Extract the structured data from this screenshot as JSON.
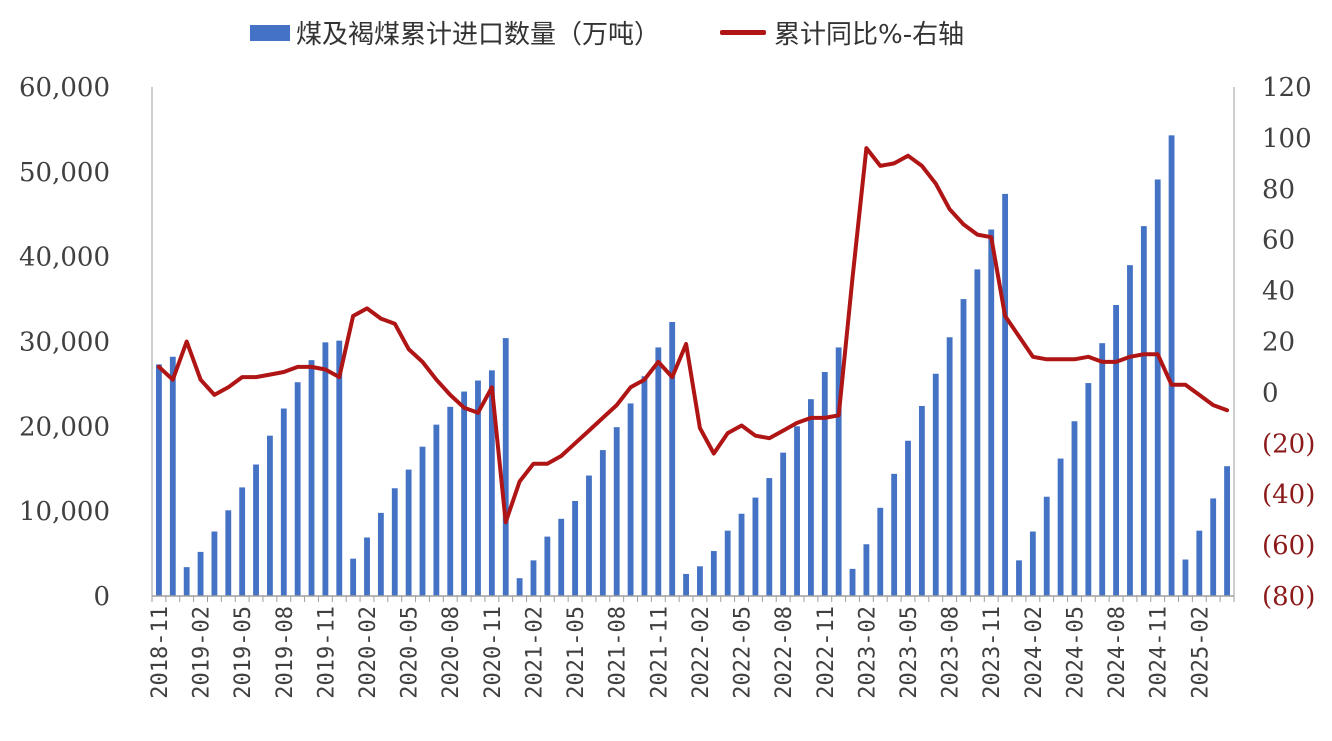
{
  "legend": {
    "bar_label": "煤及褐煤累计进口数量（万吨）",
    "line_label": "累计同比%-右轴"
  },
  "colors": {
    "bar": "#4472C4",
    "line": "#B01515",
    "axis": "#9e9e9e",
    "neg_tick": "#8B1A1A"
  },
  "chart_data": {
    "type": "bar+line",
    "categories": [
      "2018-11",
      "2018-12",
      "2019-01",
      "2019-02",
      "2019-03",
      "2019-04",
      "2019-05",
      "2019-06",
      "2019-07",
      "2019-08",
      "2019-09",
      "2019-10",
      "2019-11",
      "2019-12",
      "2020-01",
      "2020-02",
      "2020-03",
      "2020-04",
      "2020-05",
      "2020-06",
      "2020-07",
      "2020-08",
      "2020-09",
      "2020-10",
      "2020-11",
      "2020-12",
      "2021-01",
      "2021-02",
      "2021-03",
      "2021-04",
      "2021-05",
      "2021-06",
      "2021-07",
      "2021-08",
      "2021-09",
      "2021-10",
      "2021-11",
      "2021-12",
      "2022-01",
      "2022-02",
      "2022-03",
      "2022-04",
      "2022-05",
      "2022-06",
      "2022-07",
      "2022-08",
      "2022-09",
      "2022-10",
      "2022-11",
      "2022-12",
      "2023-01",
      "2023-02",
      "2023-03",
      "2023-04",
      "2023-05",
      "2023-06",
      "2023-07",
      "2023-08",
      "2023-09",
      "2023-10",
      "2023-11",
      "2023-12",
      "2024-01",
      "2024-02",
      "2024-03",
      "2024-04",
      "2024-05",
      "2024-06",
      "2024-07",
      "2024-08",
      "2024-09",
      "2024-10",
      "2024-11",
      "2024-12",
      "2025-01",
      "2025-02",
      "2025-03",
      "2025-04"
    ],
    "x_tick_labels": [
      "2018-11",
      "2019-02",
      "2019-05",
      "2019-08",
      "2019-11",
      "2020-02",
      "2020-05",
      "2020-08",
      "2020-11",
      "2021-02",
      "2021-05",
      "2021-08",
      "2021-11",
      "2022-02",
      "2022-05",
      "2022-08",
      "2022-11",
      "2023-02",
      "2023-05",
      "2023-08",
      "2023-11",
      "2024-02",
      "2024-05",
      "2024-08",
      "2024-11",
      "2025-02"
    ],
    "series": [
      {
        "name": "煤及褐煤累计进口数量（万吨）",
        "type": "bar",
        "axis": "left",
        "values": [
          27300,
          28200,
          3400,
          5200,
          7600,
          10100,
          12800,
          15500,
          18900,
          22100,
          25200,
          27800,
          29900,
          30100,
          4400,
          6900,
          9800,
          12700,
          14900,
          17600,
          20200,
          22300,
          24100,
          25400,
          26600,
          30400,
          2100,
          4200,
          7000,
          9100,
          11200,
          14200,
          17200,
          19900,
          22700,
          25900,
          29300,
          32300,
          2600,
          3500,
          5300,
          7700,
          9700,
          11600,
          13900,
          16900,
          20000,
          23200,
          26400,
          29300,
          3200,
          6100,
          10400,
          14400,
          18300,
          22400,
          26200,
          30500,
          35000,
          38500,
          43200,
          47400,
          4200,
          7600,
          11700,
          16200,
          20600,
          25100,
          29800,
          34300,
          39000,
          43600,
          49100,
          54300,
          4300,
          7700,
          11500,
          15300
        ]
      },
      {
        "name": "累计同比%-右轴",
        "type": "line",
        "axis": "right",
        "values": [
          10,
          5,
          20,
          5,
          -1,
          2,
          6,
          6,
          7,
          8,
          10,
          10,
          9,
          6,
          30,
          33,
          29,
          27,
          17,
          12,
          5,
          -1,
          -6,
          -8,
          2,
          -51,
          -35,
          -28,
          -28,
          -25,
          -20,
          -15,
          -10,
          -5,
          2,
          5,
          12,
          6,
          19,
          -14,
          -24,
          -16,
          -13,
          -17,
          -18,
          -15,
          -12,
          -10,
          -10,
          -9,
          45,
          96,
          89,
          90,
          93,
          89,
          82,
          72,
          66,
          62,
          61,
          30,
          22,
          14,
          13,
          13,
          13,
          14,
          12,
          12,
          14,
          15,
          15,
          3,
          3,
          -1,
          -5,
          -7
        ]
      }
    ],
    "yleft": {
      "ylim": [
        0,
        60000
      ],
      "ticks": [
        "0",
        "10,000",
        "20,000",
        "30,000",
        "40,000",
        "50,000",
        "60,000"
      ]
    },
    "yright": {
      "ylim": [
        -80,
        120
      ],
      "ticks": [
        "(80)",
        "(60)",
        "(40)",
        "(20)",
        "0",
        "20",
        "40",
        "60",
        "80",
        "100",
        "120"
      ]
    },
    "grid": false,
    "legend_position": "top-center"
  }
}
